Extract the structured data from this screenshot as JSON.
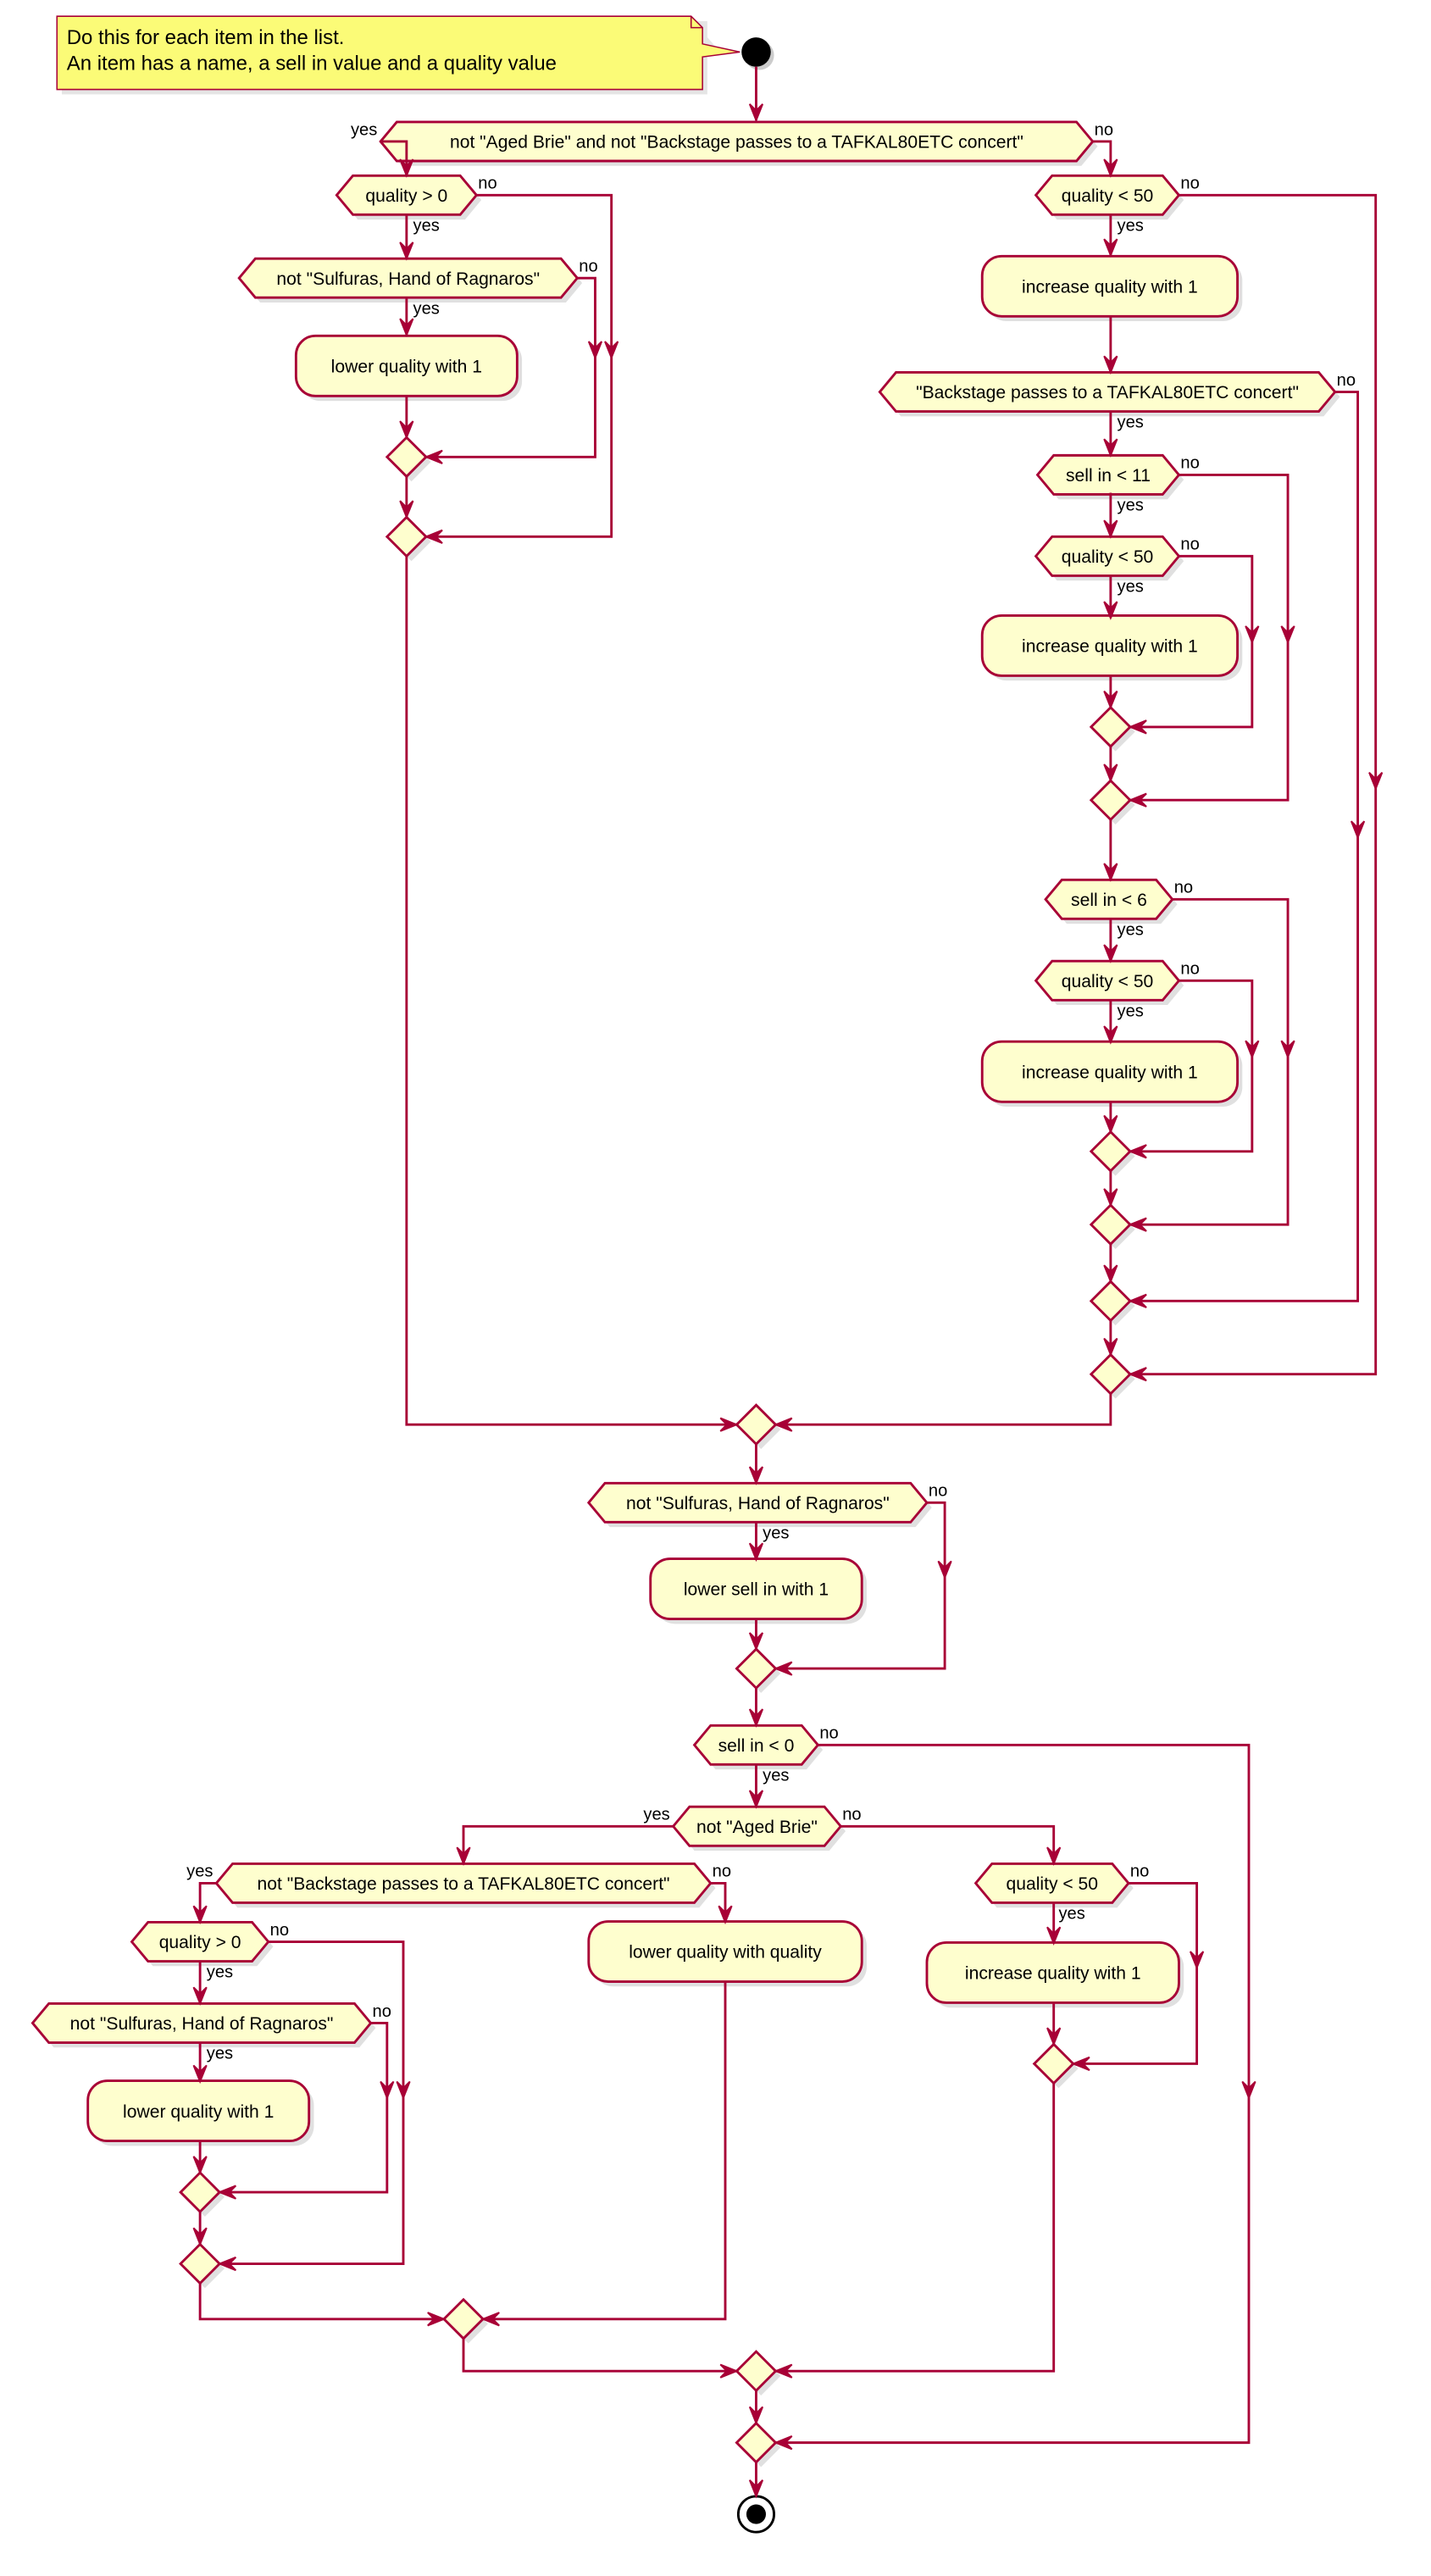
{
  "colors": {
    "line": "#A80036",
    "fill": "#FEFECE",
    "note_fill": "#FBFB77",
    "shadow": "#cccccc"
  },
  "note": {
    "lines": [
      "Do this for each item in the list.",
      "An item has a name, a sell in value and a quality value"
    ]
  },
  "labels": {
    "yes": "yes",
    "no": "no"
  },
  "nodes": [
    {
      "kind": "decision",
      "text": "not \"Aged Brie\" and not \"Backstage passes to a TAFKAL80ETC concert\""
    },
    {
      "kind": "decision",
      "text": "quality > 0"
    },
    {
      "kind": "decision",
      "text": "not \"Sulfuras, Hand of Ragnaros\""
    },
    {
      "kind": "activity",
      "text": "lower quality with 1"
    },
    {
      "kind": "decision",
      "text": "quality < 50"
    },
    {
      "kind": "activity",
      "text": "increase quality with 1"
    },
    {
      "kind": "decision",
      "text": "\"Backstage passes to a TAFKAL80ETC concert\""
    },
    {
      "kind": "decision",
      "text": "sell in < 11"
    },
    {
      "kind": "decision",
      "text": "quality < 50"
    },
    {
      "kind": "activity",
      "text": "increase quality with 1"
    },
    {
      "kind": "decision",
      "text": "sell in < 6"
    },
    {
      "kind": "decision",
      "text": "quality < 50"
    },
    {
      "kind": "activity",
      "text": "increase quality with 1"
    },
    {
      "kind": "decision",
      "text": "not \"Sulfuras, Hand of Ragnaros\""
    },
    {
      "kind": "activity",
      "text": "lower sell in with 1"
    },
    {
      "kind": "decision",
      "text": "sell in < 0"
    },
    {
      "kind": "decision",
      "text": "not \"Aged Brie\""
    },
    {
      "kind": "decision",
      "text": "not \"Backstage passes to a TAFKAL80ETC concert\""
    },
    {
      "kind": "decision",
      "text": "quality > 0"
    },
    {
      "kind": "decision",
      "text": "not \"Sulfuras, Hand of Ragnaros\""
    },
    {
      "kind": "activity",
      "text": "lower quality with 1"
    },
    {
      "kind": "activity",
      "text": "lower quality with quality"
    },
    {
      "kind": "decision",
      "text": "quality < 50"
    },
    {
      "kind": "activity",
      "text": "increase quality with 1"
    }
  ]
}
